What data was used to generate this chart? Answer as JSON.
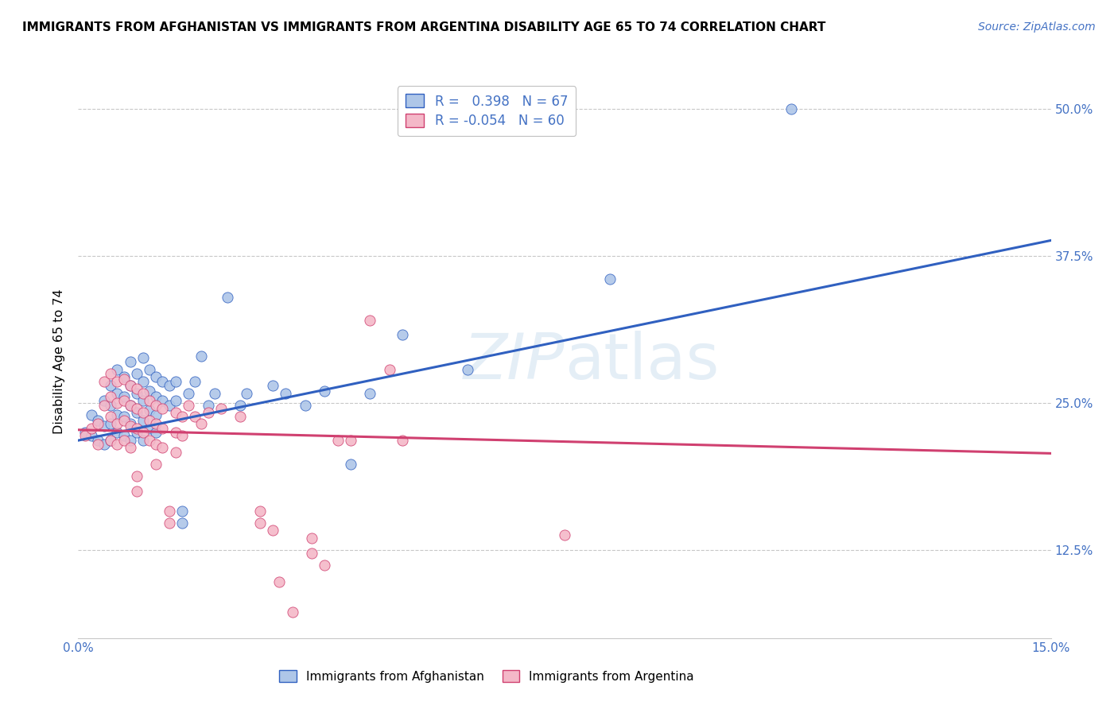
{
  "title": "IMMIGRANTS FROM AFGHANISTAN VS IMMIGRANTS FROM ARGENTINA DISABILITY AGE 65 TO 74 CORRELATION CHART",
  "source": "Source: ZipAtlas.com",
  "ylabel": "Disability Age 65 to 74",
  "x_min": 0.0,
  "x_max": 0.15,
  "y_min": 0.05,
  "y_max": 0.52,
  "watermark": "ZIPatlas",
  "color_afghanistan": "#aec6e8",
  "color_argentina": "#f4b8c8",
  "line_color_afghanistan": "#3060c0",
  "line_color_argentina": "#d04070",
  "afghanistan_line_x": [
    0.0,
    0.15
  ],
  "afghanistan_line_y": [
    0.218,
    0.388
  ],
  "argentina_line_x": [
    0.0,
    0.15
  ],
  "argentina_line_y": [
    0.227,
    0.207
  ],
  "afghanistan_scatter": [
    [
      0.001,
      0.225
    ],
    [
      0.002,
      0.24
    ],
    [
      0.002,
      0.222
    ],
    [
      0.003,
      0.235
    ],
    [
      0.003,
      0.218
    ],
    [
      0.004,
      0.252
    ],
    [
      0.004,
      0.23
    ],
    [
      0.004,
      0.215
    ],
    [
      0.005,
      0.265
    ],
    [
      0.005,
      0.248
    ],
    [
      0.005,
      0.232
    ],
    [
      0.005,
      0.218
    ],
    [
      0.006,
      0.278
    ],
    [
      0.006,
      0.258
    ],
    [
      0.006,
      0.24
    ],
    [
      0.006,
      0.225
    ],
    [
      0.007,
      0.272
    ],
    [
      0.007,
      0.255
    ],
    [
      0.007,
      0.238
    ],
    [
      0.007,
      0.222
    ],
    [
      0.008,
      0.285
    ],
    [
      0.008,
      0.265
    ],
    [
      0.008,
      0.248
    ],
    [
      0.008,
      0.232
    ],
    [
      0.008,
      0.218
    ],
    [
      0.009,
      0.275
    ],
    [
      0.009,
      0.258
    ],
    [
      0.009,
      0.242
    ],
    [
      0.009,
      0.225
    ],
    [
      0.01,
      0.288
    ],
    [
      0.01,
      0.268
    ],
    [
      0.01,
      0.252
    ],
    [
      0.01,
      0.235
    ],
    [
      0.01,
      0.218
    ],
    [
      0.011,
      0.278
    ],
    [
      0.011,
      0.26
    ],
    [
      0.011,
      0.244
    ],
    [
      0.011,
      0.228
    ],
    [
      0.012,
      0.272
    ],
    [
      0.012,
      0.255
    ],
    [
      0.012,
      0.24
    ],
    [
      0.012,
      0.225
    ],
    [
      0.013,
      0.268
    ],
    [
      0.013,
      0.252
    ],
    [
      0.014,
      0.265
    ],
    [
      0.014,
      0.248
    ],
    [
      0.015,
      0.268
    ],
    [
      0.015,
      0.252
    ],
    [
      0.016,
      0.158
    ],
    [
      0.016,
      0.148
    ],
    [
      0.017,
      0.258
    ],
    [
      0.018,
      0.268
    ],
    [
      0.019,
      0.29
    ],
    [
      0.02,
      0.248
    ],
    [
      0.021,
      0.258
    ],
    [
      0.023,
      0.34
    ],
    [
      0.025,
      0.248
    ],
    [
      0.026,
      0.258
    ],
    [
      0.03,
      0.265
    ],
    [
      0.032,
      0.258
    ],
    [
      0.035,
      0.248
    ],
    [
      0.038,
      0.26
    ],
    [
      0.042,
      0.198
    ],
    [
      0.045,
      0.258
    ],
    [
      0.05,
      0.308
    ],
    [
      0.06,
      0.278
    ],
    [
      0.082,
      0.355
    ],
    [
      0.11,
      0.5
    ]
  ],
  "argentina_scatter": [
    [
      0.001,
      0.222
    ],
    [
      0.002,
      0.228
    ],
    [
      0.003,
      0.232
    ],
    [
      0.003,
      0.215
    ],
    [
      0.004,
      0.268
    ],
    [
      0.004,
      0.248
    ],
    [
      0.005,
      0.275
    ],
    [
      0.005,
      0.255
    ],
    [
      0.005,
      0.238
    ],
    [
      0.005,
      0.218
    ],
    [
      0.006,
      0.268
    ],
    [
      0.006,
      0.25
    ],
    [
      0.006,
      0.232
    ],
    [
      0.006,
      0.215
    ],
    [
      0.007,
      0.27
    ],
    [
      0.007,
      0.252
    ],
    [
      0.007,
      0.235
    ],
    [
      0.007,
      0.218
    ],
    [
      0.008,
      0.265
    ],
    [
      0.008,
      0.248
    ],
    [
      0.008,
      0.23
    ],
    [
      0.008,
      0.212
    ],
    [
      0.009,
      0.262
    ],
    [
      0.009,
      0.245
    ],
    [
      0.009,
      0.228
    ],
    [
      0.009,
      0.188
    ],
    [
      0.009,
      0.175
    ],
    [
      0.01,
      0.258
    ],
    [
      0.01,
      0.242
    ],
    [
      0.01,
      0.225
    ],
    [
      0.011,
      0.252
    ],
    [
      0.011,
      0.235
    ],
    [
      0.011,
      0.218
    ],
    [
      0.012,
      0.248
    ],
    [
      0.012,
      0.232
    ],
    [
      0.012,
      0.215
    ],
    [
      0.012,
      0.198
    ],
    [
      0.013,
      0.245
    ],
    [
      0.013,
      0.228
    ],
    [
      0.013,
      0.212
    ],
    [
      0.014,
      0.158
    ],
    [
      0.014,
      0.148
    ],
    [
      0.015,
      0.242
    ],
    [
      0.015,
      0.225
    ],
    [
      0.015,
      0.208
    ],
    [
      0.016,
      0.238
    ],
    [
      0.016,
      0.222
    ],
    [
      0.017,
      0.248
    ],
    [
      0.018,
      0.238
    ],
    [
      0.019,
      0.232
    ],
    [
      0.02,
      0.242
    ],
    [
      0.022,
      0.245
    ],
    [
      0.025,
      0.238
    ],
    [
      0.028,
      0.158
    ],
    [
      0.028,
      0.148
    ],
    [
      0.03,
      0.142
    ],
    [
      0.031,
      0.098
    ],
    [
      0.033,
      0.072
    ],
    [
      0.036,
      0.135
    ],
    [
      0.036,
      0.122
    ],
    [
      0.038,
      0.112
    ],
    [
      0.04,
      0.218
    ],
    [
      0.042,
      0.218
    ],
    [
      0.045,
      0.32
    ],
    [
      0.048,
      0.278
    ],
    [
      0.05,
      0.218
    ],
    [
      0.075,
      0.138
    ]
  ]
}
